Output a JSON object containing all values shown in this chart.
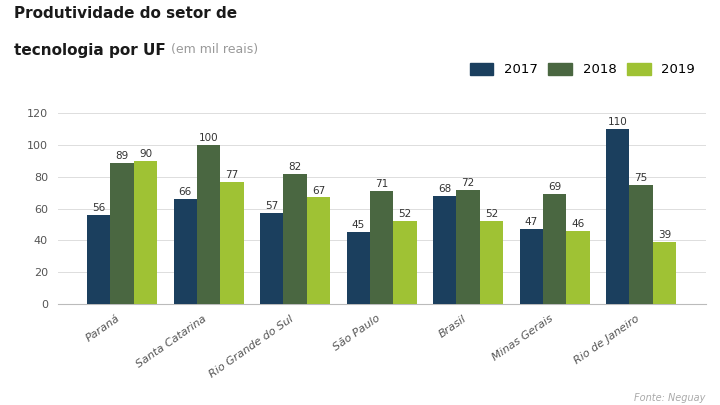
{
  "title_line1": "Produtividade do setor de",
  "title_line2_bold": "tecnologia por UF",
  "title_line2_normal": " (em mil reais)",
  "categories": [
    "Paraná",
    "Santa Catarina",
    "Rio Grande do Sul",
    "São Paulo",
    "Brasil",
    "Minas Gerais",
    "Rio de Janeiro"
  ],
  "values_2017": [
    56,
    66,
    57,
    45,
    68,
    47,
    110
  ],
  "values_2018": [
    89,
    100,
    82,
    71,
    72,
    69,
    75
  ],
  "values_2019": [
    90,
    77,
    67,
    52,
    52,
    46,
    39
  ],
  "color_2017": "#1b3f5e",
  "color_2018": "#4a6741",
  "color_2019": "#9fc234",
  "legend_labels": [
    "2017",
    "2018",
    "2019"
  ],
  "ylim": [
    0,
    120
  ],
  "yticks": [
    0,
    20,
    40,
    60,
    80,
    100,
    120
  ],
  "bar_width": 0.27,
  "background_color": "#ffffff",
  "label_fontsize": 7.5,
  "tick_fontsize": 8,
  "title_fontsize": 11,
  "subtitle_fontsize": 9,
  "source_text": "Fonte: Neguay",
  "source_fontsize": 7
}
